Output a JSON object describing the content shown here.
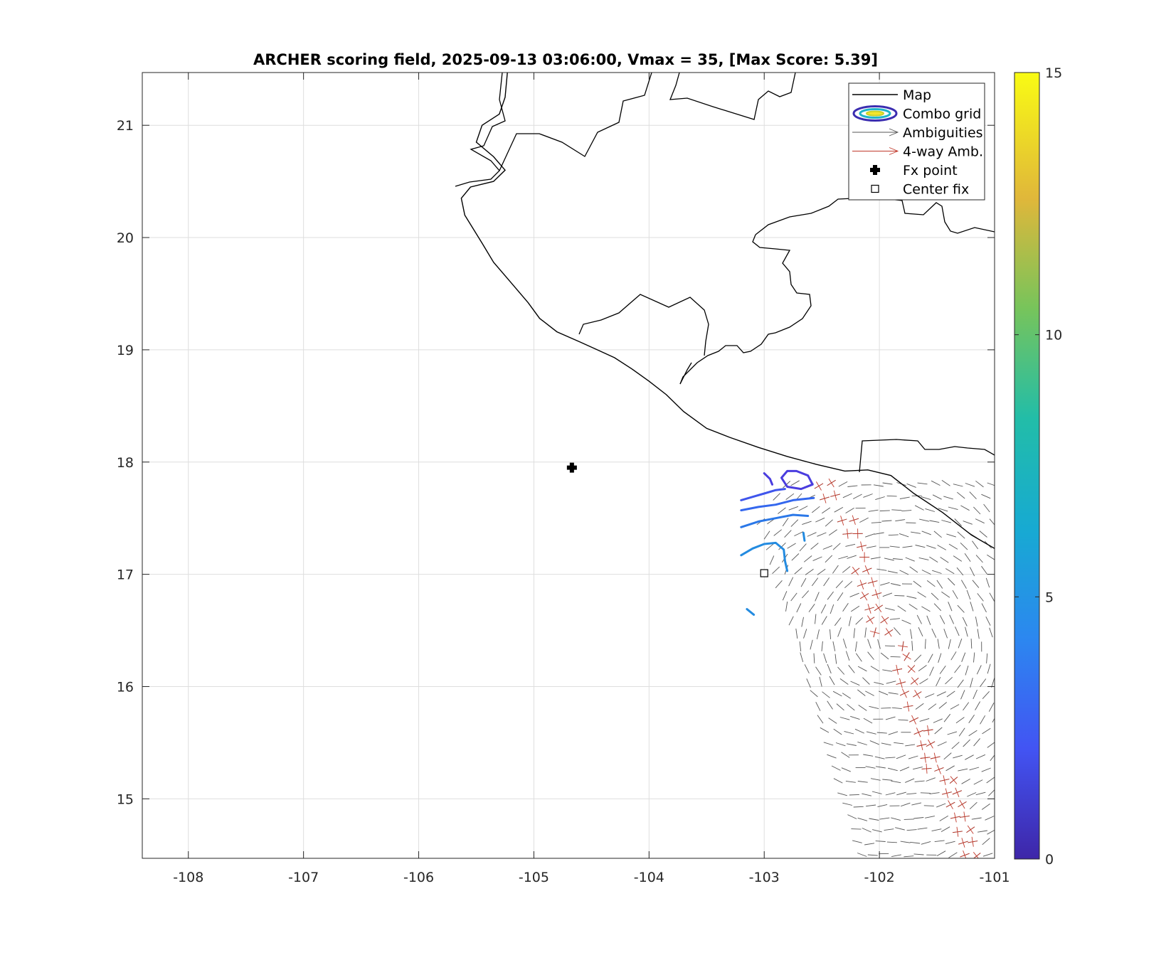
{
  "chart_data": {
    "type": "map-contour",
    "title": "ARCHER scoring field, 2025-09-13 03:06:00, Vmax = 35, [Max Score: 5.39]",
    "xlim": [
      -108.4,
      -101
    ],
    "ylim": [
      14.47,
      21.47
    ],
    "x_ticks": [
      -108,
      -107,
      -106,
      -105,
      -104,
      -103,
      -102,
      -101
    ],
    "y_ticks": [
      15,
      16,
      17,
      18,
      19,
      20,
      21
    ],
    "x_tick_labels": [
      "-108",
      "-107",
      "-106",
      "-105",
      "-104",
      "-103",
      "-102",
      "-101"
    ],
    "y_tick_labels": [
      "15",
      "16",
      "17",
      "18",
      "19",
      "20",
      "21"
    ],
    "grid": true,
    "legend_position": "top-right",
    "legend": [
      {
        "label": "Map",
        "icon": "line-icon",
        "color": "#000000"
      },
      {
        "label": "Combo grid",
        "icon": "ellipse-contour-icon",
        "color": "#3b3bd4"
      },
      {
        "label": "Ambiguities",
        "icon": "arrow-icon",
        "color": "#555555"
      },
      {
        "label": "4-way Amb.",
        "icon": "arrow-icon",
        "color": "#c0392b"
      },
      {
        "label": "Fx point",
        "icon": "plus-marker-icon",
        "color": "#000000"
      },
      {
        "label": "Center fix",
        "icon": "square-marker-icon",
        "color": "#000000"
      }
    ],
    "fx_point": {
      "lon": -104.67,
      "lat": 17.95
    },
    "center_fix": {
      "lon": -103.0,
      "lat": 17.01
    },
    "coastline": [
      [
        -101,
        17.23
      ],
      [
        -101.2,
        17.35
      ],
      [
        -101.45,
        17.55
      ],
      [
        -101.7,
        17.72
      ],
      [
        -101.9,
        17.88
      ],
      [
        -102.1,
        17.93
      ],
      [
        -102.3,
        17.92
      ],
      [
        -102.55,
        17.98
      ],
      [
        -102.8,
        18.05
      ],
      [
        -103.05,
        18.13
      ],
      [
        -103.3,
        18.22
      ],
      [
        -103.5,
        18.3
      ],
      [
        -103.7,
        18.45
      ],
      [
        -103.85,
        18.6
      ],
      [
        -104.0,
        18.72
      ],
      [
        -104.15,
        18.83
      ],
      [
        -104.3,
        18.93
      ],
      [
        -104.45,
        19.0
      ],
      [
        -104.6,
        19.07
      ],
      [
        -104.8,
        19.16
      ],
      [
        -104.95,
        19.28
      ],
      [
        -105.05,
        19.42
      ],
      [
        -105.2,
        19.6
      ],
      [
        -105.35,
        19.78
      ],
      [
        -105.45,
        19.95
      ],
      [
        -105.6,
        20.2
      ],
      [
        -105.63,
        20.35
      ],
      [
        -105.55,
        20.45
      ],
      [
        -105.35,
        20.5
      ],
      [
        -105.25,
        20.6
      ],
      [
        -105.35,
        20.72
      ],
      [
        -105.5,
        20.85
      ],
      [
        -105.45,
        21.0
      ],
      [
        -105.3,
        21.1
      ],
      [
        -105.25,
        21.25
      ],
      [
        -105.23,
        21.47
      ]
    ],
    "colorbar": {
      "min": 0,
      "max": 15,
      "ticks": [
        0,
        5,
        10,
        15
      ],
      "tick_labels": [
        "0",
        "5",
        "10",
        "15"
      ],
      "colormap": "parula"
    },
    "contours": [
      {
        "level": 2.5,
        "color": "#4a3ddf",
        "points": [
          [
            -102.72,
            17.92
          ],
          [
            -102.62,
            17.88
          ],
          [
            -102.58,
            17.8
          ],
          [
            -102.68,
            17.76
          ],
          [
            -102.8,
            17.78
          ],
          [
            -102.85,
            17.86
          ],
          [
            -102.8,
            17.92
          ],
          [
            -102.72,
            17.92
          ]
        ]
      },
      {
        "level": 2.5,
        "color": "#4a3ddf",
        "points": [
          [
            -103.0,
            17.9
          ],
          [
            -102.95,
            17.85
          ],
          [
            -102.93,
            17.8
          ]
        ]
      },
      {
        "level": 3.2,
        "color": "#3f55ec",
        "points": [
          [
            -103.2,
            17.66
          ],
          [
            -103.1,
            17.69
          ],
          [
            -103.0,
            17.72
          ],
          [
            -102.9,
            17.75
          ],
          [
            -102.82,
            17.76
          ]
        ]
      },
      {
        "level": 3.8,
        "color": "#3467ee",
        "points": [
          [
            -103.2,
            17.57
          ],
          [
            -103.05,
            17.6
          ],
          [
            -102.9,
            17.62
          ],
          [
            -102.75,
            17.66
          ],
          [
            -102.57,
            17.68
          ]
        ]
      },
      {
        "level": 4.3,
        "color": "#2b78e8",
        "points": [
          [
            -103.2,
            17.42
          ],
          [
            -103.05,
            17.47
          ],
          [
            -102.9,
            17.5
          ],
          [
            -102.75,
            17.53
          ],
          [
            -102.62,
            17.52
          ]
        ]
      },
      {
        "level": 5.0,
        "color": "#238be0",
        "points": [
          [
            -103.2,
            17.17
          ],
          [
            -103.1,
            17.23
          ],
          [
            -103.0,
            17.27
          ],
          [
            -102.9,
            17.28
          ],
          [
            -102.83,
            17.22
          ],
          [
            -102.82,
            17.12
          ],
          [
            -102.8,
            17.03
          ]
        ]
      },
      {
        "level": 5.0,
        "color": "#238be0",
        "points": [
          [
            -102.66,
            17.37
          ],
          [
            -102.65,
            17.3
          ]
        ]
      },
      {
        "level": 5.0,
        "color": "#238be0",
        "points": [
          [
            -103.15,
            16.69
          ],
          [
            -103.09,
            16.64
          ]
        ]
      }
    ]
  }
}
